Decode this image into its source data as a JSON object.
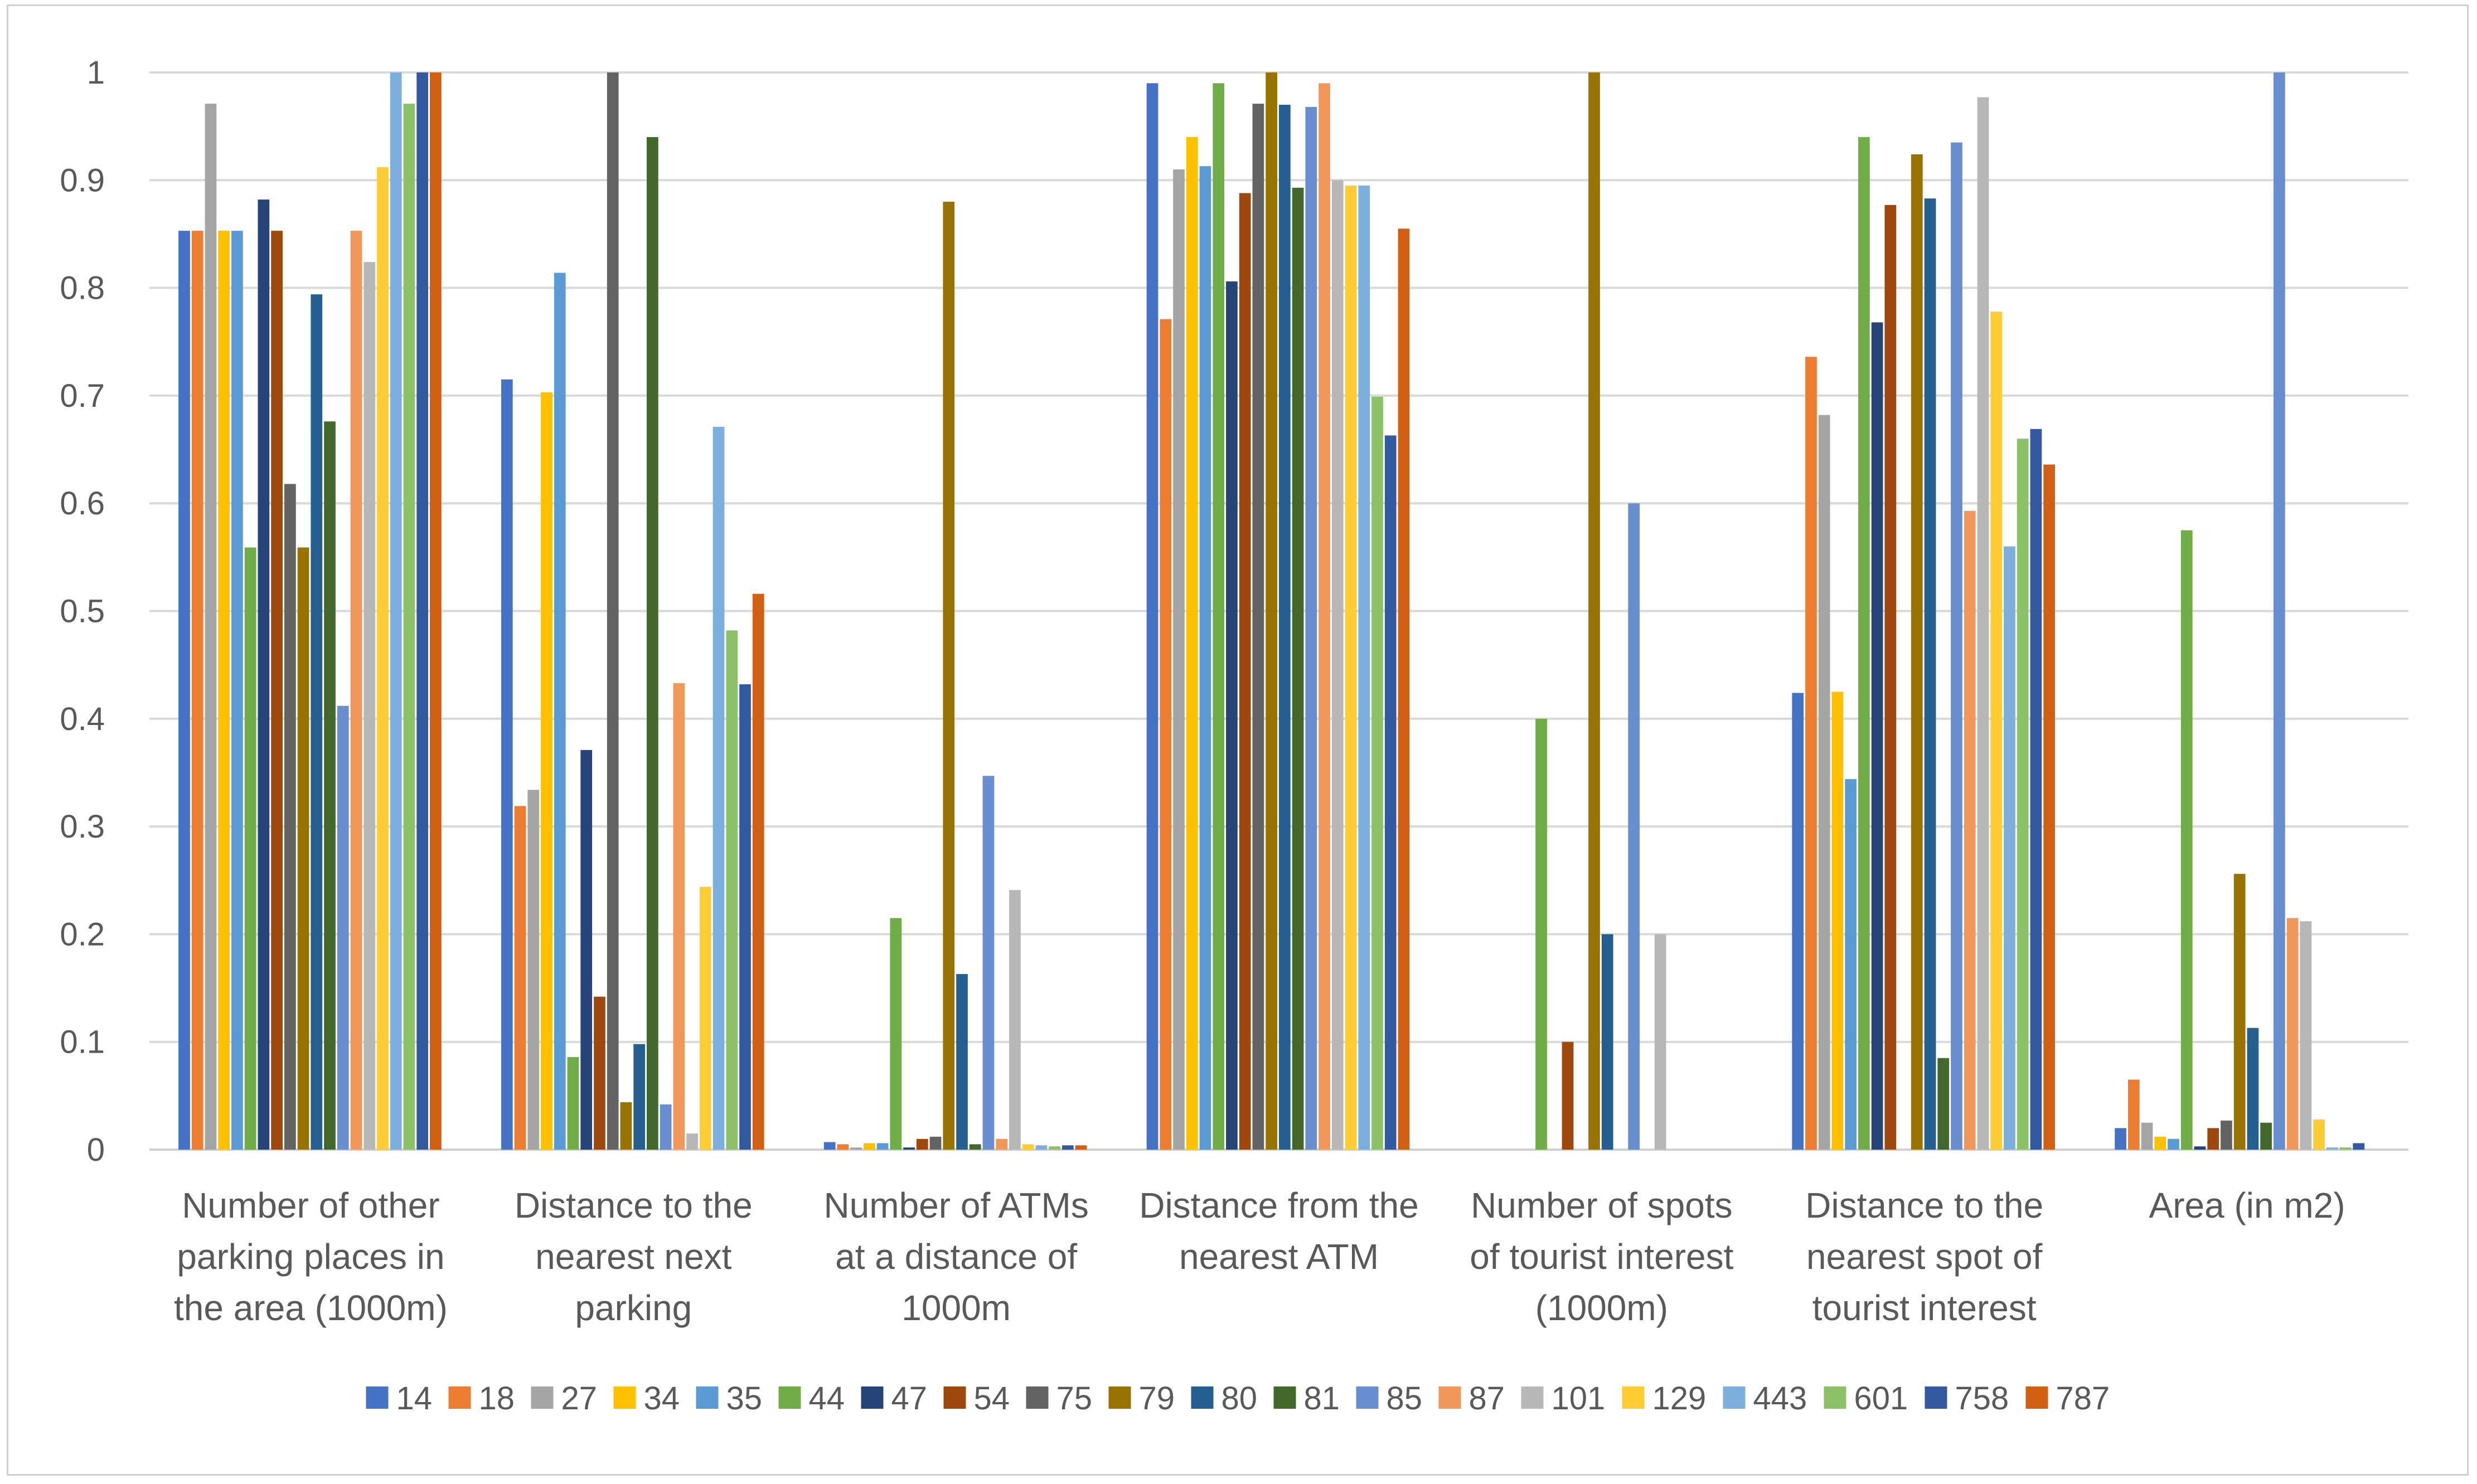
{
  "chart_data": {
    "type": "bar",
    "title": "",
    "xlabel": "",
    "ylabel": "",
    "ylim": [
      0,
      1
    ],
    "yticks": [
      "0",
      "0.1",
      "0.2",
      "0.3",
      "0.4",
      "0.5",
      "0.6",
      "0.7",
      "0.8",
      "0.9",
      "1"
    ],
    "grid": true,
    "legend_position": "bottom",
    "categories": [
      [
        "Number of other",
        "parking places in",
        "the area (1000m)"
      ],
      [
        "Distance to the",
        "nearest next",
        "parking"
      ],
      [
        "Number of ATMs",
        "at a distance of",
        "1000m"
      ],
      [
        "Distance from the",
        "nearest ATM"
      ],
      [
        "Number of spots",
        "of tourist interest",
        "(1000m)"
      ],
      [
        "Distance to the",
        "nearest spot of",
        "tourist interest"
      ],
      [
        "Area (in m2)"
      ]
    ],
    "series": [
      {
        "name": "14",
        "color": "#4472C4",
        "values": [
          0.853,
          0.715,
          0.007,
          0.99,
          0.0,
          0.424,
          0.02
        ]
      },
      {
        "name": "18",
        "color": "#ED7D31",
        "values": [
          0.853,
          0.319,
          0.005,
          0.771,
          0.0,
          0.736,
          0.065
        ]
      },
      {
        "name": "27",
        "color": "#A5A5A5",
        "values": [
          0.971,
          0.334,
          0.002,
          0.91,
          0.0,
          0.682,
          0.025
        ]
      },
      {
        "name": "34",
        "color": "#FFC000",
        "values": [
          0.853,
          0.703,
          0.006,
          0.94,
          0.0,
          0.425,
          0.012
        ]
      },
      {
        "name": "35",
        "color": "#5B9BD5",
        "values": [
          0.853,
          0.814,
          0.006,
          0.913,
          0.0,
          0.344,
          0.01
        ]
      },
      {
        "name": "44",
        "color": "#70AD47",
        "values": [
          0.559,
          0.086,
          0.215,
          0.99,
          0.4,
          0.94,
          0.575
        ]
      },
      {
        "name": "47",
        "color": "#264478",
        "values": [
          0.882,
          0.371,
          0.002,
          0.806,
          0.0,
          0.768,
          0.003
        ]
      },
      {
        "name": "54",
        "color": "#9E480E",
        "values": [
          0.853,
          0.142,
          0.01,
          0.888,
          0.1,
          0.877,
          0.02
        ]
      },
      {
        "name": "75",
        "color": "#636363",
        "values": [
          0.618,
          1.0,
          0.012,
          0.971,
          0.0,
          0.0,
          0.027
        ]
      },
      {
        "name": "79",
        "color": "#997300",
        "values": [
          0.559,
          0.044,
          0.88,
          1.0,
          1.0,
          0.924,
          0.256
        ]
      },
      {
        "name": "80",
        "color": "#255E91",
        "values": [
          0.794,
          0.098,
          0.163,
          0.97,
          0.2,
          0.883,
          0.113
        ]
      },
      {
        "name": "81",
        "color": "#43682B",
        "values": [
          0.676,
          0.94,
          0.005,
          0.893,
          0.0,
          0.085,
          0.025
        ]
      },
      {
        "name": "85",
        "color": "#698ED0",
        "values": [
          0.412,
          0.042,
          0.347,
          0.968,
          0.6,
          0.935,
          1.0
        ]
      },
      {
        "name": "87",
        "color": "#F1975A",
        "values": [
          0.853,
          0.433,
          0.01,
          0.99,
          0.0,
          0.593,
          0.215
        ]
      },
      {
        "name": "101",
        "color": "#B7B7B7",
        "values": [
          0.824,
          0.015,
          0.241,
          0.9,
          0.2,
          0.977,
          0.212
        ]
      },
      {
        "name": "129",
        "color": "#FFCD33",
        "values": [
          0.912,
          0.244,
          0.005,
          0.895,
          0.0,
          0.778,
          0.028
        ]
      },
      {
        "name": "443",
        "color": "#7CAFDD",
        "values": [
          1.0,
          0.671,
          0.004,
          0.895,
          0.0,
          0.56,
          0.002
        ]
      },
      {
        "name": "601",
        "color": "#8CC168",
        "values": [
          0.971,
          0.482,
          0.003,
          0.699,
          0.0,
          0.66,
          0.002
        ]
      },
      {
        "name": "758",
        "color": "#335AA1",
        "values": [
          1.0,
          0.432,
          0.004,
          0.663,
          0.0,
          0.669,
          0.006
        ]
      },
      {
        "name": "787",
        "color": "#D26012",
        "values": [
          1.0,
          0.516,
          0.004,
          0.855,
          0.0,
          0.636,
          0.0
        ]
      }
    ]
  }
}
